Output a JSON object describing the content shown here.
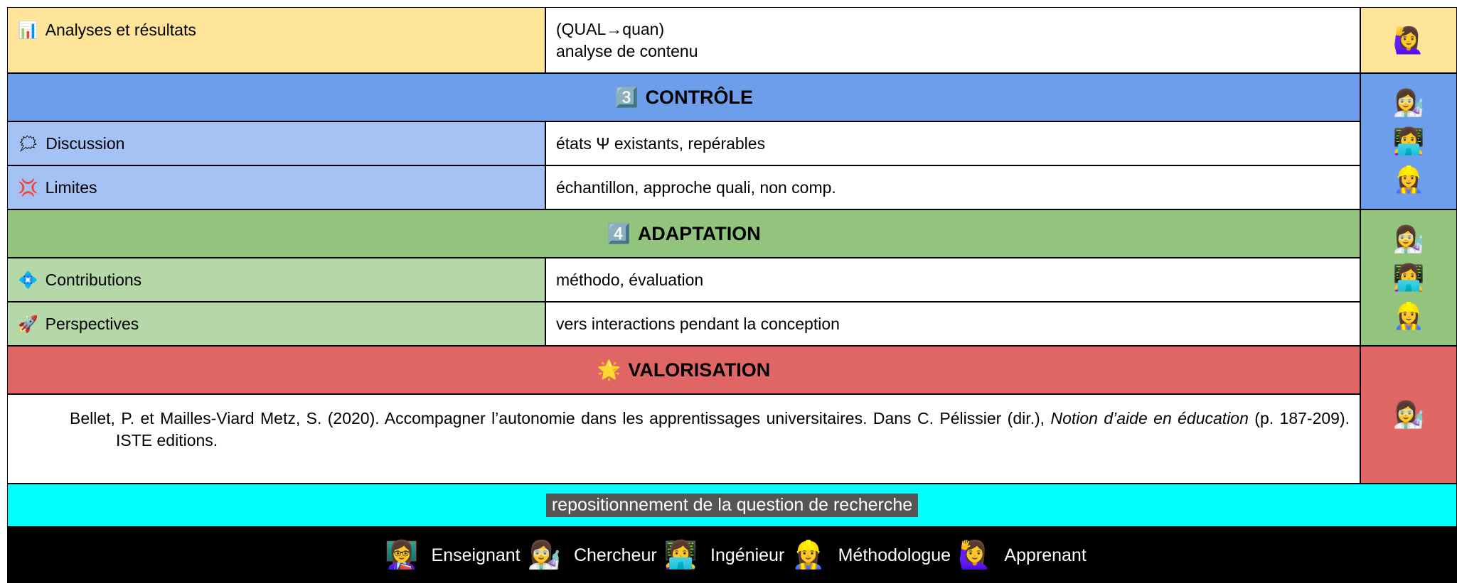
{
  "top_row": {
    "icon": "📊",
    "label": "Analyses et résultats",
    "content": [
      "(QUAL→quan)",
      "analyse de contenu"
    ],
    "people": [
      "🙋‍♀️"
    ]
  },
  "sections": [
    {
      "icon": "3️⃣",
      "title": "CONTRÔLE",
      "people": [
        "👩‍🔬",
        "👩‍💻",
        "👷‍♀️"
      ],
      "rows": [
        {
          "icon": "🗯",
          "label": "Discussion",
          "content": "états Ψ existants, repérables"
        },
        {
          "icon": "💢",
          "label": "Limites",
          "content": "échantillon, approche quali, non comp."
        }
      ]
    },
    {
      "icon": "4️⃣",
      "title": "ADAPTATION",
      "people": [
        "👩‍🔬",
        "👩‍💻",
        "👷‍♀️"
      ],
      "rows": [
        {
          "icon": "💠",
          "label": "Contributions",
          "content": "méthodo, évaluation"
        },
        {
          "icon": "🚀",
          "label": "Perspectives",
          "content": "vers interactions pendant la conception"
        }
      ]
    }
  ],
  "valorisation": {
    "icon": "🌟",
    "title": "VALORISATION",
    "people": [
      "👩‍🔬"
    ],
    "reference": {
      "before": "Bellet, P. et Mailles-Viard Metz, S. (2020). Accompagner l’autonomie dans les apprentissages universitaires. Dans C. Pélissier (dir.), ",
      "italic": "Notion d’aide en éducation",
      "after": " (p. 187-209). ISTE editions."
    }
  },
  "banner": "repositionnement de la question de recherche",
  "legend": [
    {
      "icon": "👩‍🏫",
      "label": "Enseignant"
    },
    {
      "icon": "👩‍🔬",
      "label": "Chercheur"
    },
    {
      "icon": "👩‍💻",
      "label": "Ingénieur"
    },
    {
      "icon": "👷‍♀️",
      "label": "Méthodologue"
    },
    {
      "icon": "🙋‍♀️",
      "label": "Apprenant"
    }
  ]
}
